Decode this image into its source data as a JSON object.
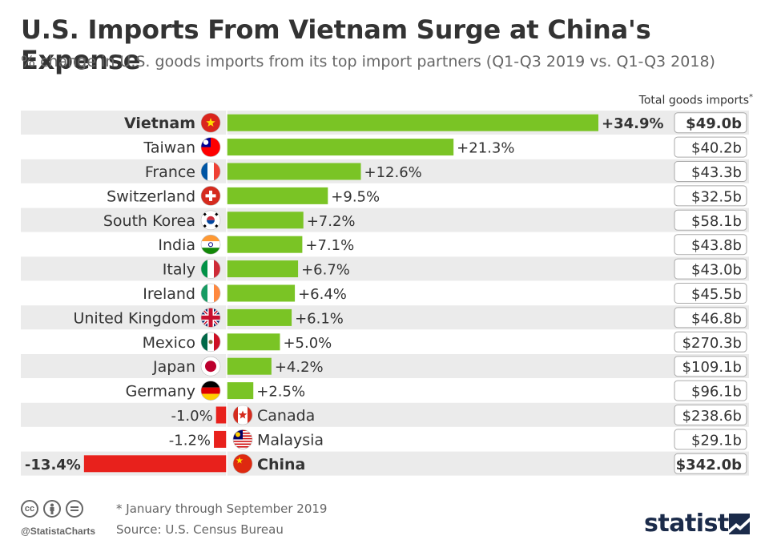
{
  "header": {
    "title": "U.S. Imports From Vietnam Surge at China's Expense",
    "subtitle": "% change in U.S. goods imports from its top import partners (Q1-Q3 2019 vs. Q1-Q3 2018)",
    "right_column_label": "Total goods imports",
    "right_column_marker": "*"
  },
  "footer": {
    "note": "* January through September 2019",
    "source": "Source: U.S. Census Bureau",
    "handle": "@StatistaCharts",
    "brand": "statista",
    "cc_icons": [
      "cc-icon",
      "by-icon",
      "nd-icon"
    ]
  },
  "colors": {
    "positive": "#7ac425",
    "negative": "#e8211c",
    "row_shade": "#ebebeb"
  },
  "chart_data": {
    "type": "bar",
    "orientation": "horizontal",
    "categories": [
      "Vietnam",
      "Taiwan",
      "France",
      "Switzerland",
      "South Korea",
      "India",
      "Italy",
      "Ireland",
      "United Kingdom",
      "Mexico",
      "Japan",
      "Germany",
      "Canada",
      "Malaysia",
      "China"
    ],
    "values": [
      34.9,
      21.3,
      12.6,
      9.5,
      7.2,
      7.1,
      6.7,
      6.4,
      6.1,
      5.0,
      4.2,
      2.5,
      -1.0,
      -1.2,
      -13.4
    ],
    "value_labels": [
      "+34.9%",
      "+21.3%",
      "+12.6%",
      "+9.5%",
      "+7.2%",
      "+7.1%",
      "+6.7%",
      "+6.4%",
      "+6.1%",
      "+5.0%",
      "+4.2%",
      "+2.5%",
      "-1.0%",
      "-1.2%",
      "-13.4%"
    ],
    "total_imports": [
      "$49.0b",
      "$40.2b",
      "$43.3b",
      "$32.5b",
      "$58.1b",
      "$43.8b",
      "$43.0b",
      "$45.5b",
      "$46.8b",
      "$270.3b",
      "$109.1b",
      "$96.1b",
      "$238.6b",
      "$29.1b",
      "$342.0b"
    ],
    "highlighted": [
      "Vietnam",
      "China"
    ],
    "flags": [
      "vietnam-flag-icon",
      "taiwan-flag-icon",
      "france-flag-icon",
      "switzerland-flag-icon",
      "south-korea-flag-icon",
      "india-flag-icon",
      "italy-flag-icon",
      "ireland-flag-icon",
      "united-kingdom-flag-icon",
      "mexico-flag-icon",
      "japan-flag-icon",
      "germany-flag-icon",
      "canada-flag-icon",
      "malaysia-flag-icon",
      "china-flag-icon"
    ],
    "title": "U.S. Imports From Vietnam Surge at China's Expense",
    "xlabel": "",
    "ylabel": "",
    "xlim": [
      -13.4,
      34.9
    ],
    "grid": false,
    "legend": "none"
  }
}
